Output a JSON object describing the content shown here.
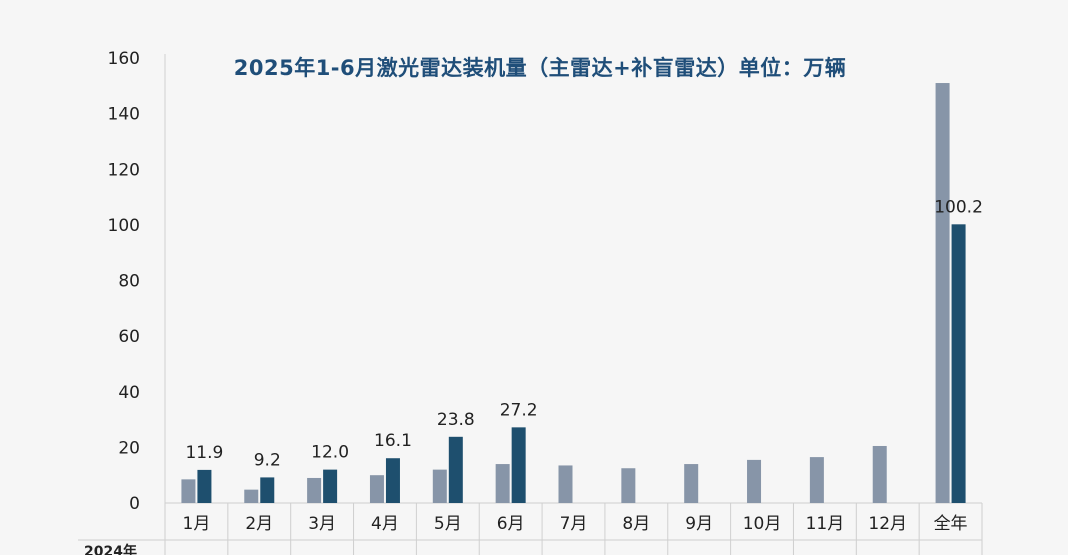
{
  "chart_data": {
    "type": "bar",
    "title": "2025年1-6月激光雷达装机量（主雷达+补盲雷达）单位：万辆",
    "categories": [
      "1月",
      "2月",
      "3月",
      "4月",
      "5月",
      "6月",
      "7月",
      "8月",
      "9月",
      "10月",
      "11月",
      "12月",
      "全年"
    ],
    "ylim": [
      0,
      160
    ],
    "yticks": [
      0,
      20,
      40,
      60,
      80,
      100,
      120,
      140,
      160
    ],
    "series": [
      {
        "color": "#8795a8",
        "values": [
          8.5,
          4.8,
          9.0,
          10.0,
          12.0,
          14.0,
          13.5,
          12.5,
          14.0,
          15.5,
          16.5,
          20.5,
          151.0
        ]
      },
      {
        "color": "#1e4f6e",
        "values": [
          11.9,
          9.2,
          12.0,
          16.1,
          23.8,
          27.2,
          null,
          null,
          null,
          null,
          null,
          null,
          100.2
        ],
        "labels": [
          "11.9",
          "9.2",
          "12.0",
          "16.1",
          "23.8",
          "27.2",
          "",
          "",
          "",
          "",
          "",
          "",
          "100.2"
        ]
      }
    ],
    "grid": false,
    "partial_row_label": "2024年"
  }
}
